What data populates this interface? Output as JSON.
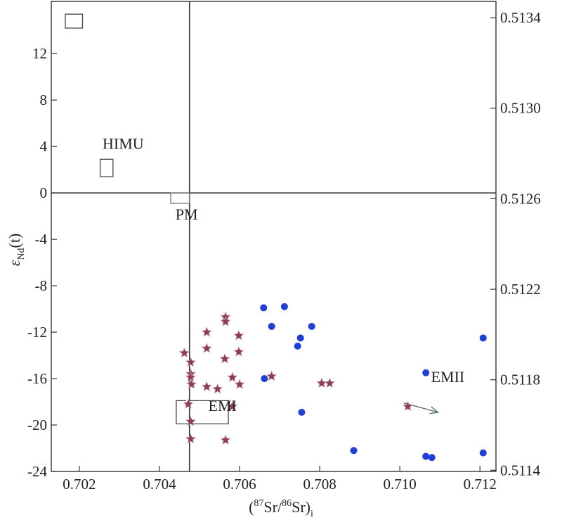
{
  "chart_data": {
    "type": "scatter",
    "xlabel": {
      "open": "(",
      "sup": "87",
      "mid1": "Sr/",
      "sup2": "86",
      "mid2": "Sr)",
      "sub": "i"
    },
    "ylabel": {
      "main": "ε",
      "sub": "Nd",
      "rest": "(t)"
    },
    "xlim": [
      0.7013,
      0.7124
    ],
    "ylim": [
      -24,
      16.5
    ],
    "x_ticks": [
      0.702,
      0.704,
      0.706,
      0.708,
      0.71,
      0.712
    ],
    "x_tick_labels": [
      "0.702",
      "0.704",
      "0.706",
      "0.708",
      "0.710",
      "0.712"
    ],
    "y_ticks": [
      12,
      8,
      4,
      0,
      -4,
      -8,
      -12,
      -16,
      -20,
      -24
    ],
    "y_tick_labels": [
      "12",
      "8",
      "4",
      "0",
      "-4",
      "-8",
      "-12",
      "-16",
      "-20",
      "-24"
    ],
    "right_axis": {
      "ticks": [
        0.5134,
        0.513,
        0.5126,
        0.5122,
        0.5118,
        0.5114
      ],
      "tick_labels": [
        "0.5134",
        "0.5130",
        "0.5126",
        "0.5122",
        "0.5118",
        "0.5114"
      ],
      "tick_positions_eps": [
        15.1,
        7.3,
        -0.5,
        -8.3,
        -16.1,
        -23.9
      ]
    },
    "reference_lines": {
      "x": 0.70475,
      "y": 0
    },
    "regions": [
      {
        "label": "",
        "x": [
          0.70165,
          0.70208
        ],
        "y": [
          14.2,
          15.4
        ]
      },
      {
        "label": "HIMU",
        "x": [
          0.70252,
          0.70284
        ],
        "y": [
          1.4,
          2.9
        ],
        "label_at": [
          0.70258,
          3.8
        ]
      },
      {
        "label": "PM",
        "x": [
          0.70428,
          0.70475
        ],
        "y": [
          -0.9,
          0
        ],
        "label_at": [
          0.7044,
          -2.3
        ]
      },
      {
        "label": "EMI",
        "x": [
          0.70442,
          0.70572
        ],
        "y": [
          -19.9,
          -17.9
        ],
        "label_at": [
          0.70522,
          -18.8
        ]
      }
    ],
    "arrow": {
      "label": "EMII",
      "from": [
        0.7101,
        -18.1
      ],
      "to": [
        0.71095,
        -18.9
      ],
      "label_at": [
        0.71078,
        -16.3
      ]
    },
    "series": [
      {
        "marker": "star",
        "color": "#8b3a5a",
        "points": [
          [
            0.70462,
            -13.8
          ],
          [
            0.70472,
            -18.2
          ],
          [
            0.70478,
            -14.6
          ],
          [
            0.70478,
            -15.6
          ],
          [
            0.70478,
            -15.9
          ],
          [
            0.7048,
            -16.5
          ],
          [
            0.70478,
            -19.7
          ],
          [
            0.70478,
            -21.2
          ],
          [
            0.70518,
            -12.0
          ],
          [
            0.70518,
            -13.4
          ],
          [
            0.70518,
            -16.7
          ],
          [
            0.70545,
            -16.9
          ],
          [
            0.70565,
            -10.7
          ],
          [
            0.70565,
            -11.1
          ],
          [
            0.70563,
            -14.3
          ],
          [
            0.70565,
            -21.3
          ],
          [
            0.70582,
            -15.9
          ],
          [
            0.70582,
            -18.4
          ],
          [
            0.70598,
            -12.3
          ],
          [
            0.70598,
            -13.7
          ],
          [
            0.706,
            -16.5
          ],
          [
            0.7068,
            -15.8
          ],
          [
            0.70805,
            -16.4
          ],
          [
            0.70825,
            -16.4
          ],
          [
            0.7102,
            -18.4
          ]
        ]
      },
      {
        "marker": "circle",
        "color": "#1f3fd6",
        "points": [
          [
            0.7066,
            -9.9
          ],
          [
            0.70712,
            -9.8
          ],
          [
            0.7068,
            -11.5
          ],
          [
            0.7078,
            -11.5
          ],
          [
            0.70752,
            -12.5
          ],
          [
            0.70745,
            -13.2
          ],
          [
            0.70662,
            -16.0
          ],
          [
            0.70755,
            -18.9
          ],
          [
            0.71065,
            -15.5
          ],
          [
            0.71208,
            -12.5
          ],
          [
            0.70885,
            -22.2
          ],
          [
            0.71065,
            -22.7
          ],
          [
            0.7108,
            -22.8
          ],
          [
            0.71208,
            -22.4
          ]
        ]
      }
    ]
  }
}
